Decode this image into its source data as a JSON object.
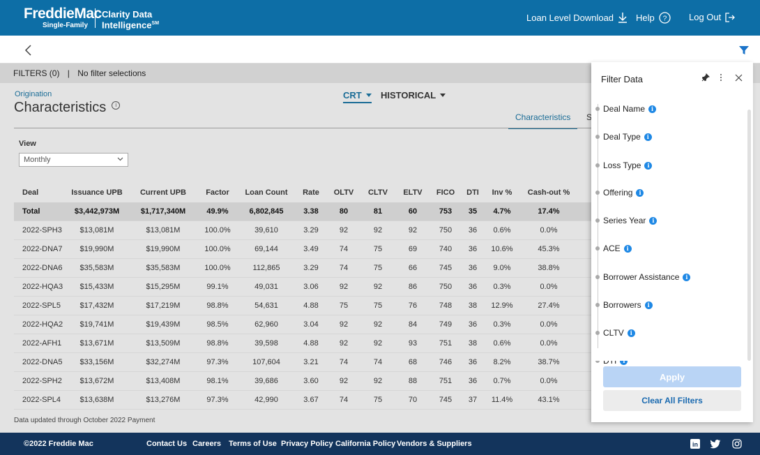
{
  "header": {
    "logo_main": "FreddieMac",
    "logo_sub": "Single-Family",
    "product_line1": "Clarity Data",
    "product_line2": "Intelligence",
    "product_mark": "SM",
    "download_label": "Loan Level Download",
    "help_label": "Help",
    "logout_label": "Log Out"
  },
  "filters_bar": {
    "count_label": "FILTERS (0)",
    "separator": "|",
    "selection_label": "No filter selections"
  },
  "page": {
    "section_label": "Origination",
    "title": "Characteristics",
    "info_glyph": "i",
    "dropdown_crt": "CRT",
    "dropdown_historical": "HISTORICAL",
    "tab_active": "Characteristics",
    "tab_partial": "S",
    "view_label": "View",
    "view_value": "Monthly"
  },
  "table": {
    "headers": [
      "Deal",
      "Issuance UPB",
      "Current UPB",
      "Factor",
      "Loan Count",
      "Rate",
      "OLTV",
      "CLTV",
      "ELTV",
      "FICO",
      "DTI",
      "Inv %",
      "Cash-out %"
    ],
    "total": [
      "Total",
      "$3,442,973M",
      "$1,717,340M",
      "49.9%",
      "6,802,845",
      "3.38",
      "80",
      "81",
      "60",
      "753",
      "35",
      "4.7%",
      "17.4%"
    ],
    "rows": [
      [
        "2022-SPH3",
        "$13,081M",
        "$13,081M",
        "100.0%",
        "39,610",
        "3.29",
        "92",
        "92",
        "92",
        "750",
        "36",
        "0.6%",
        "0.0%"
      ],
      [
        "2022-DNA7",
        "$19,990M",
        "$19,990M",
        "100.0%",
        "69,144",
        "3.49",
        "74",
        "75",
        "69",
        "740",
        "36",
        "10.6%",
        "45.3%"
      ],
      [
        "2022-DNA6",
        "$35,583M",
        "$35,583M",
        "100.0%",
        "112,865",
        "3.29",
        "74",
        "75",
        "66",
        "745",
        "36",
        "9.0%",
        "38.8%"
      ],
      [
        "2022-HQA3",
        "$15,433M",
        "$15,295M",
        "99.1%",
        "49,031",
        "3.06",
        "92",
        "92",
        "86",
        "750",
        "36",
        "0.3%",
        "0.0%"
      ],
      [
        "2022-SPL5",
        "$17,432M",
        "$17,219M",
        "98.8%",
        "54,631",
        "4.88",
        "75",
        "75",
        "76",
        "748",
        "38",
        "12.9%",
        "27.4%"
      ],
      [
        "2022-HQA2",
        "$19,741M",
        "$19,439M",
        "98.5%",
        "62,960",
        "3.04",
        "92",
        "92",
        "84",
        "749",
        "36",
        "0.3%",
        "0.0%"
      ],
      [
        "2022-AFH1",
        "$13,671M",
        "$13,509M",
        "98.8%",
        "39,598",
        "4.88",
        "92",
        "92",
        "93",
        "751",
        "38",
        "0.6%",
        "0.0%"
      ],
      [
        "2022-DNA5",
        "$33,156M",
        "$32,274M",
        "97.3%",
        "107,604",
        "3.21",
        "74",
        "74",
        "68",
        "746",
        "36",
        "8.2%",
        "38.7%"
      ],
      [
        "2022-SPH2",
        "$13,672M",
        "$13,408M",
        "98.1%",
        "39,686",
        "3.60",
        "92",
        "92",
        "88",
        "751",
        "36",
        "0.7%",
        "0.0%"
      ],
      [
        "2022-SPL4",
        "$13,638M",
        "$13,276M",
        "97.3%",
        "42,990",
        "3.67",
        "74",
        "75",
        "70",
        "745",
        "37",
        "11.4%",
        "43.1%"
      ]
    ]
  },
  "updated_note": "Data updated through October 2022 Payment",
  "footer": {
    "copyright": "©2022 Freddie Mac",
    "links": [
      "Contact Us",
      "Careers",
      "Terms of Use",
      "Privacy Policy",
      "California Policy",
      "Vendors & Suppliers"
    ]
  },
  "filter_panel": {
    "title": "Filter Data",
    "items": [
      "Deal Name",
      "Deal Type",
      "Loss Type",
      "Offering",
      "Series Year",
      "ACE",
      "Borrower Assistance",
      "Borrowers",
      "CLTV",
      "DTI"
    ],
    "apply_label": "Apply",
    "clear_label": "Clear All Filters"
  },
  "colors": {
    "header_bg": "#0d6ea6",
    "footer_bg": "#13345c",
    "accent": "#1a6c96",
    "info_blue": "#1e88e5",
    "apply_disabled": "#b9d4f5"
  }
}
